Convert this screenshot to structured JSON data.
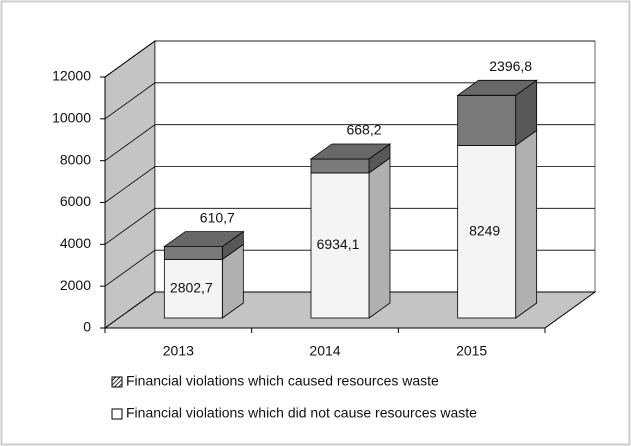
{
  "chart_data": {
    "type": "bar3d_stacked",
    "categories": [
      "2013",
      "2014",
      "2015"
    ],
    "series": [
      {
        "name": "Financial violations which did not cause resources waste",
        "color": "#f4f4f4",
        "values": [
          2802.7,
          6934.1,
          8249
        ],
        "value_labels": [
          "2802,7",
          "6934,1",
          "8249"
        ]
      },
      {
        "name": "Financial violations which caused resources waste",
        "color": "#7a7a7a",
        "values": [
          610.7,
          668.2,
          2396.8
        ],
        "value_labels": [
          "610,7",
          "668,2",
          "2396,8"
        ]
      }
    ],
    "ylim": [
      0,
      12000
    ],
    "yticks": [
      0,
      2000,
      4000,
      6000,
      8000,
      10000,
      12000
    ],
    "grid": true
  }
}
